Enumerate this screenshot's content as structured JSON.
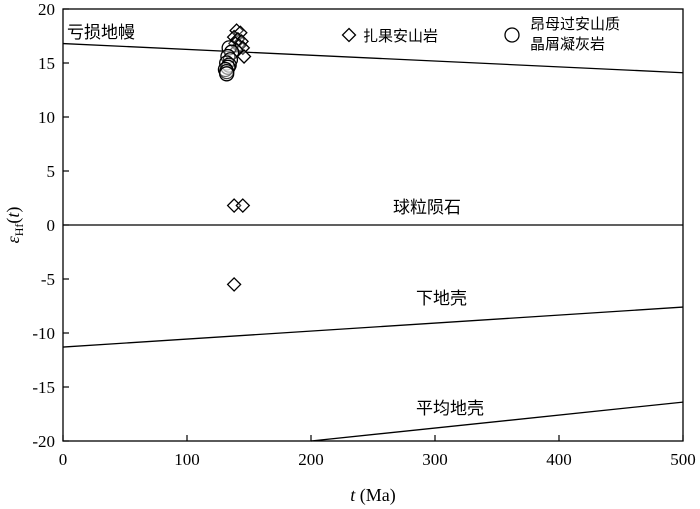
{
  "chart_data": {
    "type": "scatter",
    "xlabel": {
      "var": "t",
      "unit": " (Ma)"
    },
    "ylabel": {
      "symbol": "ε",
      "sub": "Hf",
      "arg": "(t)"
    },
    "xlim": [
      0,
      500
    ],
    "ylim": [
      -20,
      20
    ],
    "x_ticks": [
      0,
      100,
      200,
      300,
      400,
      500
    ],
    "y_ticks": [
      -20,
      -15,
      -10,
      -5,
      0,
      5,
      10,
      15,
      20
    ],
    "series": [
      {
        "name": "扎果安山岩",
        "marker": "diamond",
        "points": [
          [
            140,
            18.0
          ],
          [
            143,
            17.8
          ],
          [
            138,
            17.4
          ],
          [
            141,
            17.2
          ],
          [
            144,
            17.0
          ],
          [
            139,
            16.8
          ],
          [
            142,
            16.6
          ],
          [
            145,
            16.4
          ],
          [
            140,
            16.2
          ],
          [
            146,
            15.6
          ],
          [
            138,
            1.8
          ],
          [
            145,
            1.8
          ],
          [
            138,
            -5.5
          ]
        ]
      },
      {
        "name": "昂母过安山质晶屑凝灰岩",
        "name_lines": [
          "昂母过安山质",
          "晶屑凝灰岩"
        ],
        "marker": "circle",
        "points": [
          [
            134,
            16.4
          ],
          [
            136,
            16.0
          ],
          [
            133,
            15.6
          ],
          [
            135,
            15.3
          ],
          [
            132,
            15.0
          ],
          [
            134,
            14.8
          ],
          [
            133,
            14.6
          ],
          [
            131,
            14.4
          ],
          [
            132,
            14.2
          ],
          [
            132,
            14.0
          ]
        ]
      }
    ],
    "reference_lines": [
      {
        "label": "亏损地幔",
        "from": [
          0,
          16.8
        ],
        "to": [
          500,
          14.1
        ]
      },
      {
        "label": "球粒陨石",
        "from": [
          0,
          0
        ],
        "to": [
          500,
          0
        ]
      },
      {
        "label": "下地壳",
        "from": [
          0,
          -11.3
        ],
        "to": [
          500,
          -7.6
        ]
      },
      {
        "label": "平均地壳",
        "from": [
          200,
          -20
        ],
        "to": [
          500,
          -16.4
        ]
      }
    ],
    "legend_position": "top-right",
    "grid": false
  }
}
